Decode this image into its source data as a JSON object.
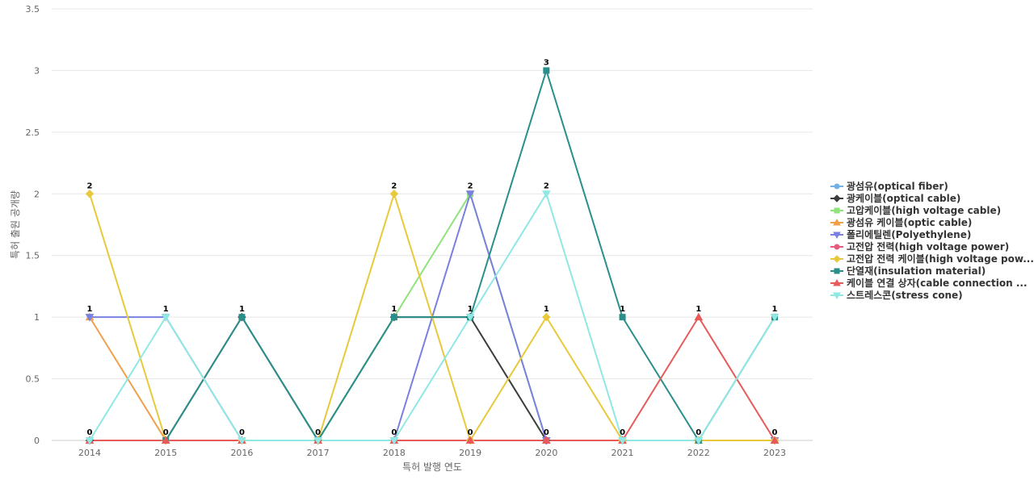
{
  "chart_data": {
    "type": "line",
    "xlabel": "특허 발행 연도",
    "ylabel": "특허 출원 공개량",
    "ylim": [
      0,
      3.5
    ],
    "yticks": [
      0,
      0.5,
      1,
      1.5,
      2,
      2.5,
      3,
      3.5
    ],
    "ytick_labels": [
      "0",
      "0.5",
      "1",
      "1.5",
      "2",
      "2.5",
      "3",
      "3.5"
    ],
    "grid": true,
    "legend_position": "right",
    "categories": [
      "2014",
      "2015",
      "2016",
      "2017",
      "2018",
      "2019",
      "2020",
      "2021",
      "2022",
      "2023"
    ],
    "series": [
      {
        "name": "광섬유(optical fiber)",
        "color": "#6fb1e8",
        "marker": "circle",
        "values": [
          0,
          0,
          0,
          0,
          0,
          0,
          0,
          0,
          0,
          0
        ]
      },
      {
        "name": "광케이블(optical cable)",
        "color": "#3d3d3d",
        "marker": "diamond",
        "values": [
          0,
          0,
          1,
          0,
          1,
          1,
          0,
          0,
          0,
          0
        ]
      },
      {
        "name": "고압케이블(high voltage cable)",
        "color": "#8fe37a",
        "marker": "square",
        "values": [
          0,
          0,
          0,
          0,
          1,
          2,
          0,
          0,
          0,
          0
        ]
      },
      {
        "name": "광섬유 케이블(optic cable)",
        "color": "#f0a04b",
        "marker": "triangle",
        "values": [
          1,
          0,
          0,
          0,
          0,
          0,
          0,
          0,
          0,
          0
        ]
      },
      {
        "name": "폴리에틸렌(Polyethylene)",
        "color": "#7a80e0",
        "marker": "triangle-down",
        "values": [
          1,
          1,
          0,
          0,
          0,
          2,
          0,
          0,
          0,
          0
        ]
      },
      {
        "name": "고전압 전력(high voltage power)",
        "color": "#e85a7c",
        "marker": "circle",
        "values": [
          0,
          0,
          0,
          0,
          0,
          0,
          0,
          0,
          0,
          0
        ]
      },
      {
        "name": "고전압 전력 케이블(high voltage pow...",
        "color": "#e8c93b",
        "marker": "diamond",
        "values": [
          2,
          0,
          0,
          0,
          2,
          0,
          1,
          0,
          0,
          0
        ]
      },
      {
        "name": "단열재(insulation material)",
        "color": "#2a8f8a",
        "marker": "square",
        "values": [
          0,
          0,
          1,
          0,
          1,
          1,
          3,
          1,
          0,
          1
        ]
      },
      {
        "name": "케이블 연결 상자(cable connection ...",
        "color": "#e85a5a",
        "marker": "triangle",
        "values": [
          0,
          0,
          0,
          0,
          0,
          0,
          0,
          0,
          1,
          0
        ]
      },
      {
        "name": "스트레스콘(stress cone)",
        "color": "#8fe8e3",
        "marker": "triangle-down",
        "values": [
          0,
          1,
          0,
          0,
          0,
          1,
          2,
          0,
          0,
          1
        ]
      }
    ],
    "data_labels": [
      {
        "x": "2014",
        "values": [
          "0",
          "1",
          "2"
        ]
      },
      {
        "x": "2015",
        "values": [
          "0",
          "1"
        ]
      },
      {
        "x": "2016",
        "values": [
          "0",
          "1"
        ]
      },
      {
        "x": "2017",
        "values": [
          "0"
        ]
      },
      {
        "x": "2018",
        "values": [
          "0",
          "1",
          "2"
        ]
      },
      {
        "x": "2019",
        "values": [
          "0",
          "1",
          "2"
        ]
      },
      {
        "x": "2020",
        "values": [
          "0",
          "1",
          "2",
          "3"
        ]
      },
      {
        "x": "2021",
        "values": [
          "0",
          "1"
        ]
      },
      {
        "x": "2022",
        "values": [
          "0",
          "1"
        ]
      },
      {
        "x": "2023",
        "values": [
          "0",
          "1"
        ]
      }
    ]
  }
}
